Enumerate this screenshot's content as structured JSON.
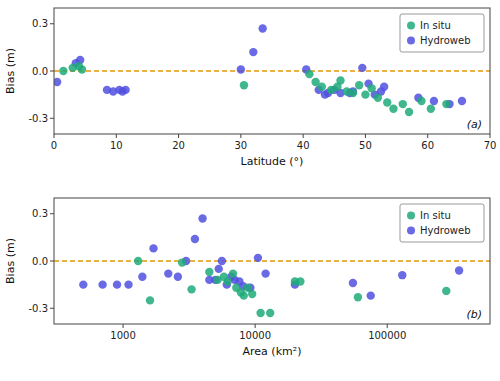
{
  "chart_data": [
    {
      "type": "scatter",
      "xlabel": "Latitude (°)",
      "ylabel": "Bias (m)",
      "annotation": "(a)",
      "xlim": [
        0,
        70
      ],
      "xticks": [
        0,
        10,
        20,
        30,
        40,
        50,
        60,
        70
      ],
      "ylim": [
        -0.4,
        0.4
      ],
      "yticks": [
        -0.3,
        {
          "value": 0.0,
          "label": "0.0"
        },
        0.3
      ],
      "legend": "upper right",
      "grid": false,
      "hlines": [
        {
          "value": 0,
          "color": "#e8960a",
          "line_style": "dashed"
        }
      ],
      "series": [
        {
          "name": "In situ",
          "color": "#1faa78",
          "x": [
            1.5,
            3.0,
            4.0,
            4.5,
            30.5,
            41.0,
            42.0,
            43.0,
            44.5,
            45.5,
            46.0,
            47.0,
            48.0,
            49.0,
            50.0,
            51.0,
            52.0,
            53.5,
            54.5,
            56.0,
            57.0,
            59.0,
            60.5,
            63.0
          ],
          "values": [
            0.0,
            0.02,
            0.03,
            0.01,
            -0.09,
            -0.02,
            -0.07,
            -0.1,
            -0.12,
            -0.1,
            -0.06,
            -0.13,
            -0.14,
            -0.09,
            -0.15,
            -0.11,
            -0.17,
            -0.2,
            -0.24,
            -0.21,
            -0.26,
            -0.19,
            -0.24,
            -0.21
          ]
        },
        {
          "name": "Hydroweb",
          "color": "#5050e0",
          "x": [
            0.5,
            3.5,
            4.2,
            8.5,
            9.5,
            10.5,
            11.0,
            11.5,
            30.0,
            32.0,
            33.5,
            40.5,
            42.5,
            43.5,
            44.0,
            45.0,
            46.0,
            47.5,
            48.0,
            49.5,
            50.5,
            51.5,
            52.5,
            53.0,
            58.5,
            61.0,
            63.5,
            65.5
          ],
          "values": [
            -0.07,
            0.05,
            0.07,
            -0.12,
            -0.13,
            -0.12,
            -0.13,
            -0.12,
            0.01,
            0.12,
            0.27,
            0.01,
            -0.12,
            -0.15,
            -0.14,
            -0.12,
            -0.14,
            -0.14,
            -0.13,
            0.02,
            -0.08,
            -0.15,
            -0.13,
            -0.1,
            -0.17,
            -0.19,
            -0.21,
            -0.19
          ]
        }
      ]
    },
    {
      "type": "scatter",
      "xlabel": "Area (km²)",
      "ylabel": "Bias (m)",
      "annotation": "(b)",
      "log": "x",
      "xlim": [
        300,
        600000
      ],
      "xticks": [
        1000,
        10000,
        100000
      ],
      "ylim": [
        -0.4,
        0.4
      ],
      "yticks": [
        -0.3,
        {
          "value": 0.0,
          "label": "0.0"
        },
        0.3
      ],
      "legend": "upper right",
      "grid": false,
      "hlines": [
        {
          "value": 0,
          "color": "#e8960a",
          "line_style": "dashed"
        }
      ],
      "series": [
        {
          "name": "In situ",
          "color": "#1faa78",
          "x": [
            1300,
            1600,
            2800,
            3300,
            4500,
            5200,
            5800,
            6200,
            6800,
            7200,
            7800,
            8200,
            8800,
            9500,
            11000,
            13000,
            20000,
            22000,
            60000,
            280000
          ],
          "values": [
            0.0,
            -0.25,
            -0.01,
            -0.18,
            -0.07,
            -0.12,
            -0.1,
            -0.13,
            -0.08,
            -0.17,
            -0.2,
            -0.22,
            -0.17,
            -0.21,
            -0.33,
            -0.33,
            -0.13,
            -0.13,
            -0.23,
            -0.19
          ]
        },
        {
          "name": "Hydroweb",
          "color": "#5050e0",
          "x": [
            500,
            700,
            900,
            1100,
            1400,
            1700,
            2200,
            2600,
            3000,
            3500,
            4000,
            4500,
            5000,
            5300,
            5600,
            6100,
            6600,
            7000,
            7600,
            8100,
            9200,
            10500,
            12000,
            20000,
            55000,
            75000,
            130000,
            350000
          ],
          "values": [
            -0.15,
            -0.15,
            -0.15,
            -0.15,
            -0.1,
            0.08,
            -0.08,
            -0.1,
            0.0,
            0.14,
            0.27,
            -0.12,
            -0.12,
            -0.05,
            0.0,
            -0.15,
            -0.1,
            -0.12,
            -0.13,
            -0.16,
            -0.17,
            0.02,
            -0.08,
            -0.15,
            -0.14,
            -0.22,
            -0.09,
            -0.06
          ]
        }
      ]
    }
  ]
}
